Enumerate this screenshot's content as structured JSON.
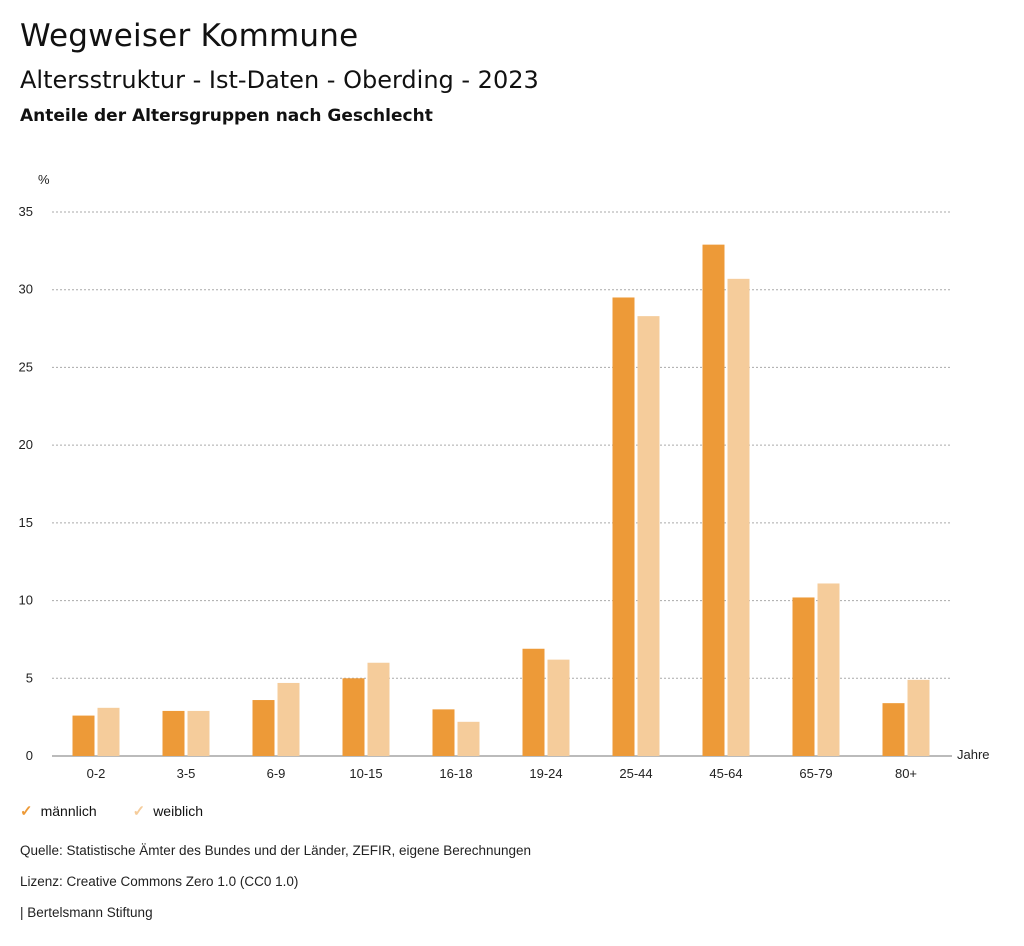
{
  "header": {
    "title": "Wegweiser Kommune",
    "subtitle": "Altersstruktur - Ist-Daten - Oberding - 2023",
    "chart_heading": "Anteile der Altersgruppen nach Geschlecht"
  },
  "colors": {
    "maennlich": "#ED9A38",
    "weiblich": "#F5CC9B",
    "grid": "#aaaaaa"
  },
  "legend": {
    "items": [
      {
        "label": "männlich",
        "icon": "check-icon",
        "color": "#ED9A38"
      },
      {
        "label": "weiblich",
        "icon": "check-icon",
        "color": "#F5CC9B"
      }
    ]
  },
  "footer": {
    "source": "Quelle: Statistische Ämter des Bundes und der Länder, ZEFIR, eigene Berechnungen",
    "license": "Lizenz: Creative Commons Zero 1.0 (CC0 1.0)",
    "publisher": "| Bertelsmann Stiftung"
  },
  "chart_data": {
    "type": "bar",
    "title": "Anteile der Altersgruppen nach Geschlecht",
    "xlabel": "Jahre",
    "ylabel": "%",
    "ylim": [
      0,
      35
    ],
    "yticks": [
      0,
      5,
      10,
      15,
      20,
      25,
      30,
      35
    ],
    "grid": true,
    "legend_position": "bottom-left",
    "categories": [
      "0-2",
      "3-5",
      "6-9",
      "10-15",
      "16-18",
      "19-24",
      "25-44",
      "45-64",
      "65-79",
      "80+"
    ],
    "series": [
      {
        "name": "männlich",
        "values": [
          2.6,
          2.9,
          3.6,
          5.0,
          3.0,
          6.9,
          29.5,
          32.9,
          10.2,
          3.4
        ]
      },
      {
        "name": "weiblich",
        "values": [
          3.1,
          2.9,
          4.7,
          6.0,
          2.2,
          6.2,
          28.3,
          30.7,
          11.1,
          4.9
        ]
      }
    ]
  }
}
